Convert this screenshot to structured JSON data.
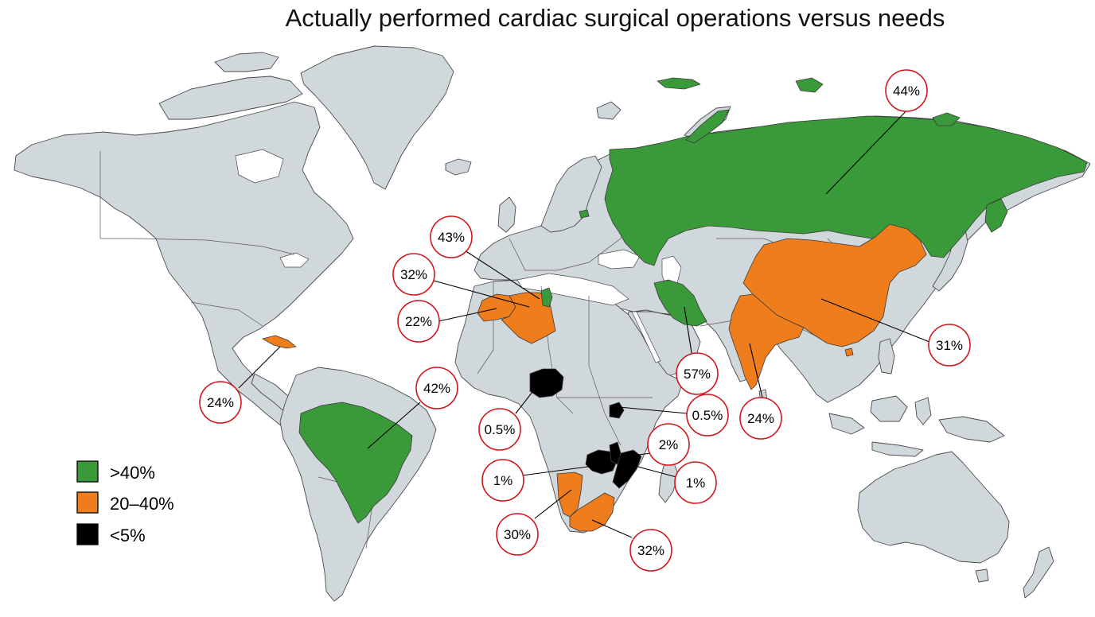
{
  "title": "Actually performed cardiac surgical operations versus needs",
  "colors": {
    "high": "#3a9a3a",
    "mid": "#ef7d1c",
    "low": "#000000",
    "other": "#d0d8db",
    "bubble_outline": "#d0161b"
  },
  "legend": [
    {
      "label": ">40%",
      "color": "#3a9a3a"
    },
    {
      "label": "20–40%",
      "color": "#ef7d1c"
    },
    {
      "label": "<5%",
      "color": "#000000"
    }
  ],
  "callouts": [
    {
      "id": "russia",
      "label": "44%",
      "category": ">40%"
    },
    {
      "id": "tunisia",
      "label": "43%",
      "category": ">40%"
    },
    {
      "id": "morocco",
      "label": "32%",
      "category": "20–40%"
    },
    {
      "id": "algeria",
      "label": "22%",
      "category": "20–40%"
    },
    {
      "id": "cuba",
      "label": "24%",
      "category": "20–40%"
    },
    {
      "id": "brazil",
      "label": "42%",
      "category": ">40%"
    },
    {
      "id": "iran",
      "label": "57%",
      "category": ">40%"
    },
    {
      "id": "india",
      "label": "24%",
      "category": "20–40%"
    },
    {
      "id": "china",
      "label": "31%",
      "category": "20–40%"
    },
    {
      "id": "nigeria",
      "label": "0.5%",
      "category": "<5%"
    },
    {
      "id": "uganda",
      "label": "0.5%",
      "category": "<5%"
    },
    {
      "id": "malawi",
      "label": "2%",
      "category": "<5%"
    },
    {
      "id": "zambia",
      "label": "1%",
      "category": "<5%"
    },
    {
      "id": "mozambique",
      "label": "1%",
      "category": "<5%"
    },
    {
      "id": "namibia",
      "label": "30%",
      "category": "20–40%"
    },
    {
      "id": "south-africa",
      "label": "32%",
      "category": "20–40%"
    }
  ]
}
